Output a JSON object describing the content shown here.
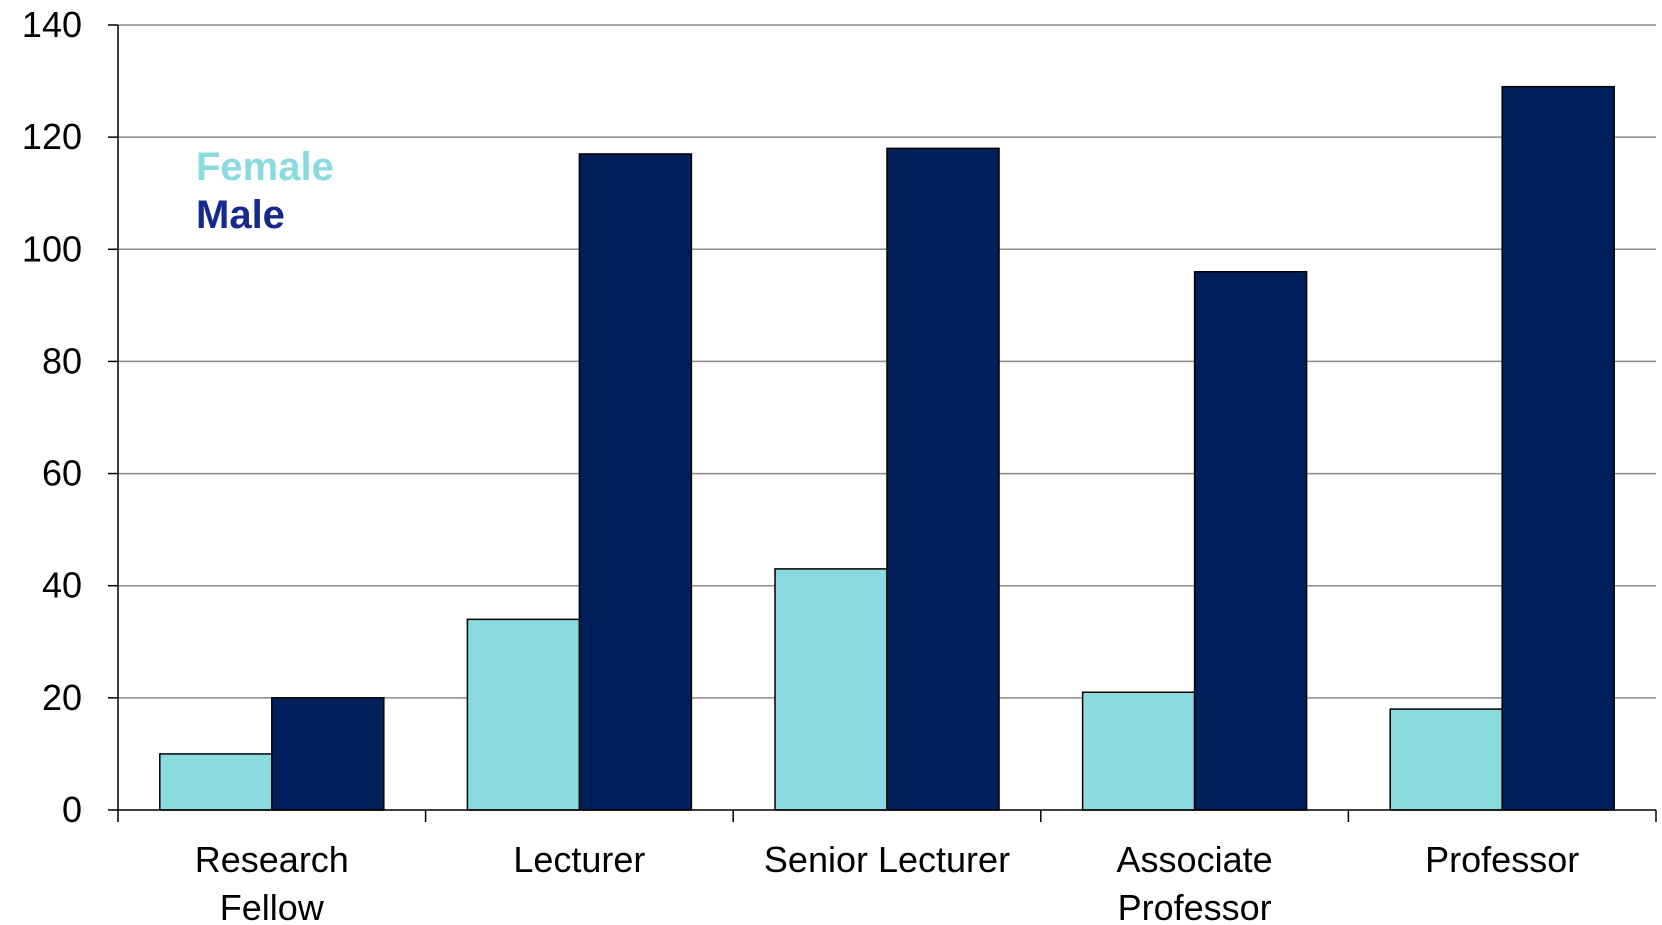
{
  "chart_data": {
    "type": "bar",
    "title": "",
    "xlabel": "",
    "ylabel": "",
    "categories": [
      [
        "Research",
        "Fellow"
      ],
      [
        "Lecturer"
      ],
      [
        "Senior Lecturer"
      ],
      [
        "Associate",
        "Professor"
      ],
      [
        "Professor"
      ]
    ],
    "series": [
      {
        "name": "Female",
        "color": "#8adbe0",
        "values": [
          10,
          34,
          43,
          21,
          18
        ]
      },
      {
        "name": "Male",
        "color": "#001f5b",
        "values": [
          20,
          117,
          118,
          96,
          129
        ]
      }
    ],
    "ylim": [
      0,
      140
    ],
    "yticks": [
      0,
      20,
      40,
      60,
      80,
      100,
      120,
      140
    ],
    "grid": true,
    "legend": {
      "position": "top-left",
      "items": [
        {
          "label": "Female",
          "color": "#8adbe0"
        },
        {
          "label": "Male",
          "color": "#16298c"
        }
      ]
    }
  }
}
